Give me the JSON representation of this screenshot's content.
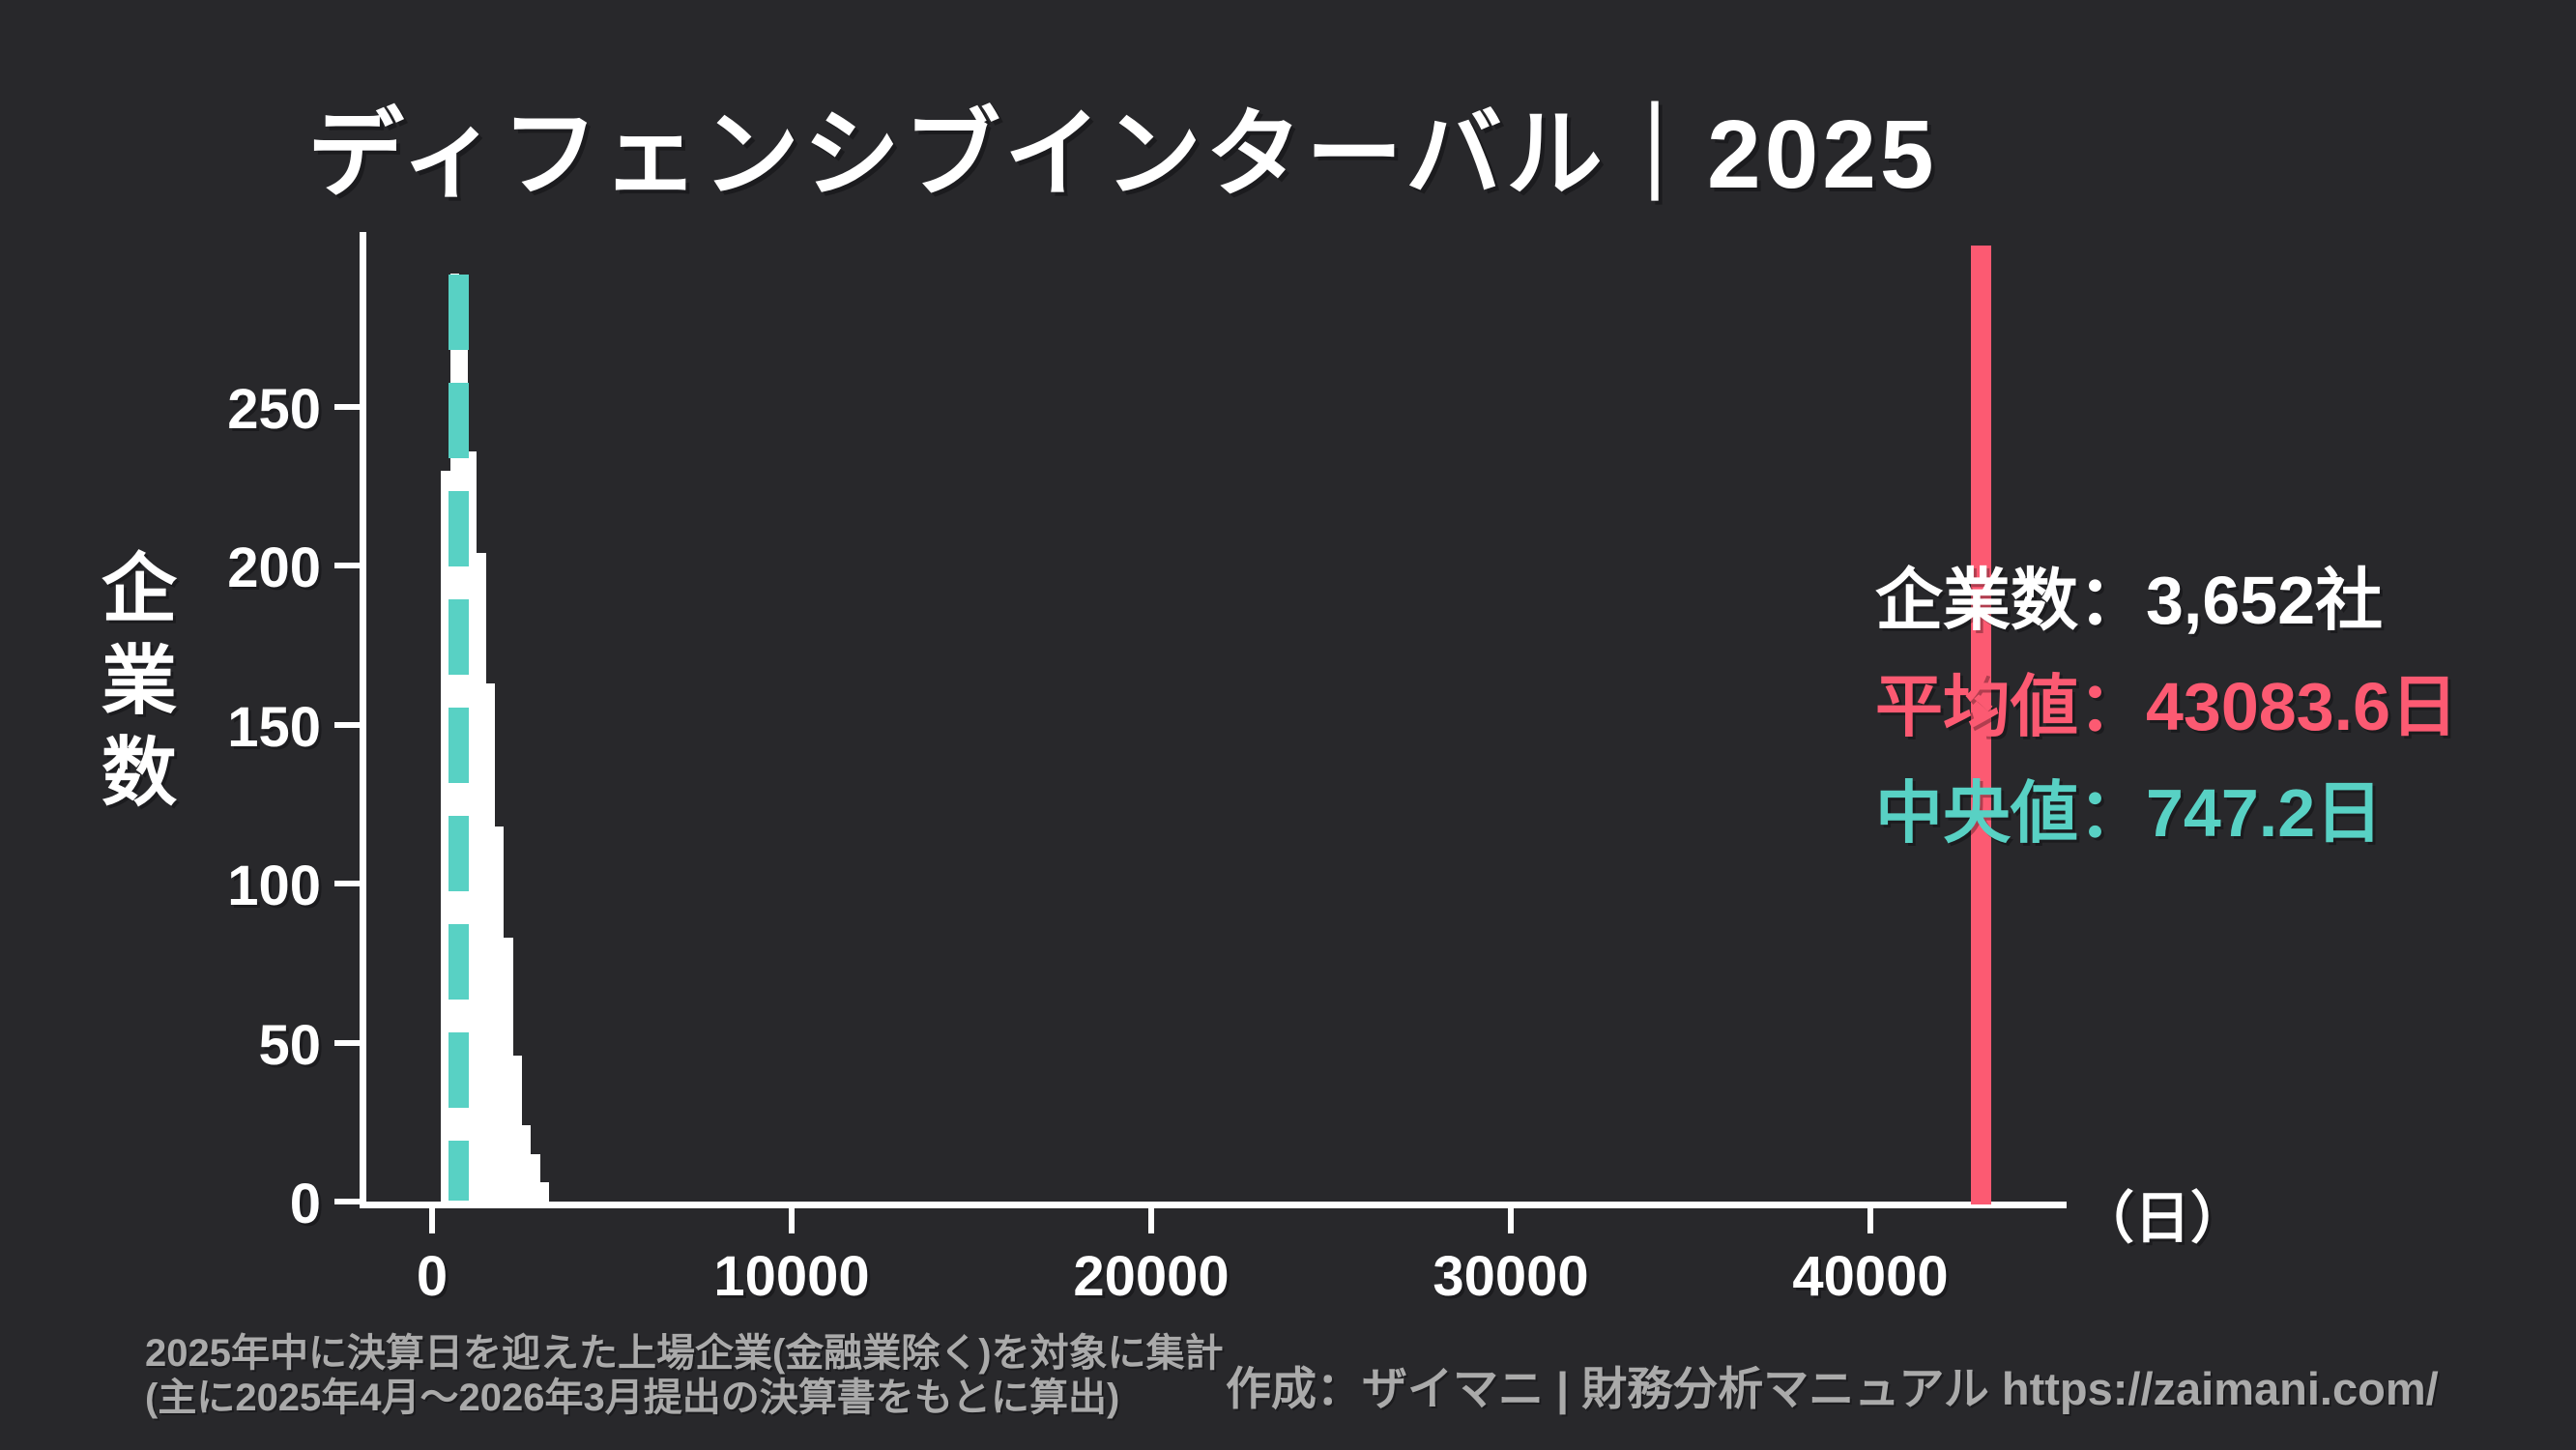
{
  "title": "ディフェンシブインターバル｜2025",
  "colors": {
    "background": "#28282b",
    "bar": "#ffffff",
    "mean": "#fc5a72",
    "median": "#58d1c4",
    "text": "#ffffff",
    "muted_text": "#aaaaaa"
  },
  "y_axis": {
    "label": "企業数",
    "ticks": [
      0,
      50,
      100,
      150,
      200,
      250
    ]
  },
  "x_axis": {
    "ticks": [
      0,
      10000,
      20000,
      30000,
      40000
    ],
    "unit": "（日）"
  },
  "stats": {
    "lines": [
      {
        "id": "companies",
        "text": "企業数：3,652社",
        "color": "#ffffff"
      },
      {
        "id": "mean",
        "text": "平均値：43083.6日",
        "color": "#fc5a72"
      },
      {
        "id": "median",
        "text": "中央値：747.2日",
        "color": "#58d1c4"
      }
    ]
  },
  "footnotes": "2025年中に決算日を迎えた上場企業(金融業除く)を対象に集計\n(主に2025年4月〜2026年3月提出の決算書をもとに算出)",
  "credit": "作成：ザイマニ | 財務分析マニュアル https://zaimani.com/",
  "chart_data": {
    "type": "bar",
    "subtype": "histogram",
    "title": "ディフェンシブインターバル｜2025",
    "xlabel": "（日）",
    "ylabel": "企業数",
    "xlim": [
      -2016,
      45457
    ],
    "ylim": [
      0,
      305
    ],
    "x_ticks": [
      0,
      10000,
      20000,
      30000,
      40000
    ],
    "y_ticks": [
      0,
      50,
      100,
      150,
      200,
      250
    ],
    "grid": false,
    "legend": "none",
    "bin_width_days": 250,
    "bins": [
      {
        "start": 250,
        "count": 230
      },
      {
        "start": 500,
        "count": 292
      },
      {
        "start": 750,
        "count": 285
      },
      {
        "start": 1000,
        "count": 236
      },
      {
        "start": 1250,
        "count": 204
      },
      {
        "start": 1500,
        "count": 163
      },
      {
        "start": 1750,
        "count": 118
      },
      {
        "start": 2000,
        "count": 83
      },
      {
        "start": 2250,
        "count": 46
      },
      {
        "start": 2500,
        "count": 24
      },
      {
        "start": 2750,
        "count": 15
      },
      {
        "start": 3000,
        "count": 6
      }
    ],
    "companies_total": 3652,
    "mean_days": 43083.6,
    "median_days": 747.2
  }
}
